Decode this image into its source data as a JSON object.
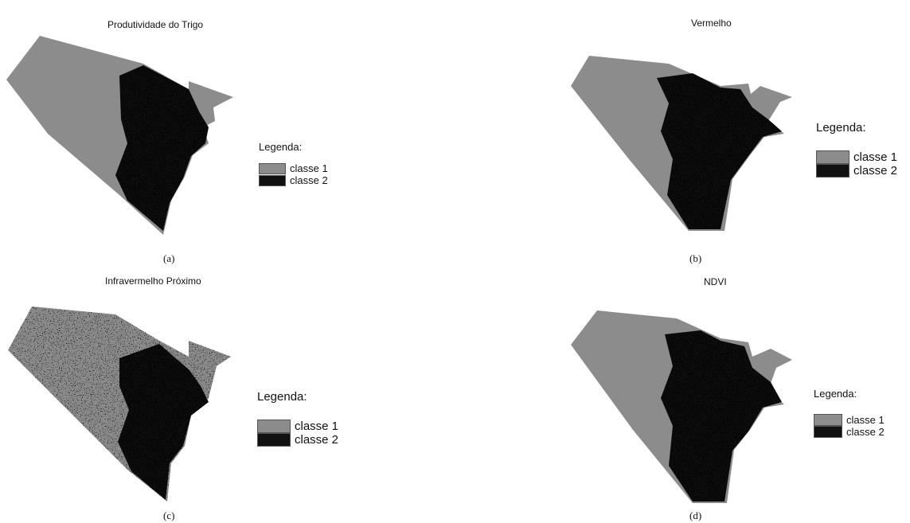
{
  "panels": [
    {
      "title": "Produtividade  do Trigo",
      "caption": "(a)"
    },
    {
      "title": "Vermelho",
      "caption": "(b)"
    },
    {
      "title": "Infravermelho Próximo",
      "caption": "(c)"
    },
    {
      "title": "NDVI",
      "caption": "(d)"
    }
  ],
  "legend": {
    "title": "Legenda:",
    "classes": [
      {
        "label": "classe 1",
        "color": "#8c8c8c"
      },
      {
        "label": "classe 2",
        "color": "#111111"
      }
    ]
  }
}
